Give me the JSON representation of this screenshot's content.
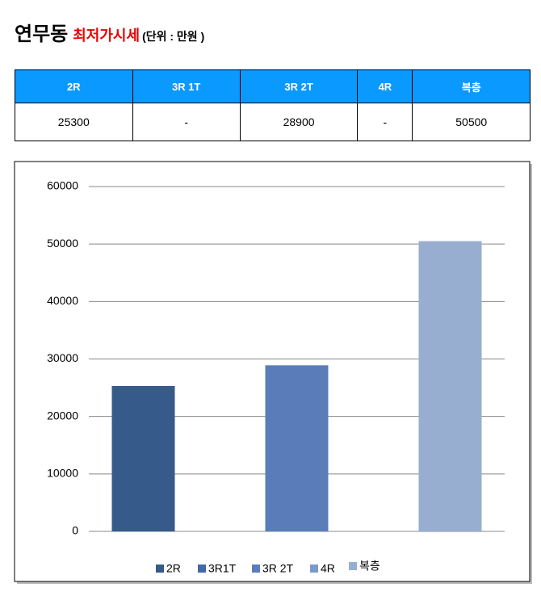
{
  "header": {
    "title": "연무동",
    "subtitle": "최저가시세",
    "unit": "(단위 : 만원 )"
  },
  "table": {
    "headers": [
      "2R",
      "3R 1T",
      "3R 2T",
      "4R",
      "복층"
    ],
    "rows": [
      [
        25300,
        "-",
        28900,
        "-",
        50500
      ]
    ]
  },
  "chart_data": {
    "type": "bar",
    "categories": [
      "2R",
      "3R1T",
      "3R 2T",
      "4R",
      "복층"
    ],
    "values": [
      25300,
      null,
      28900,
      null,
      50500
    ],
    "colors": [
      "#365a8a",
      "#4467a8",
      "#5a7db9",
      "#7a9acb",
      "#97aed1"
    ],
    "ylim": [
      0,
      60000
    ],
    "yticks": [
      0,
      10000,
      20000,
      30000,
      40000,
      50000,
      60000
    ],
    "grid": true,
    "legend": "bottom"
  }
}
